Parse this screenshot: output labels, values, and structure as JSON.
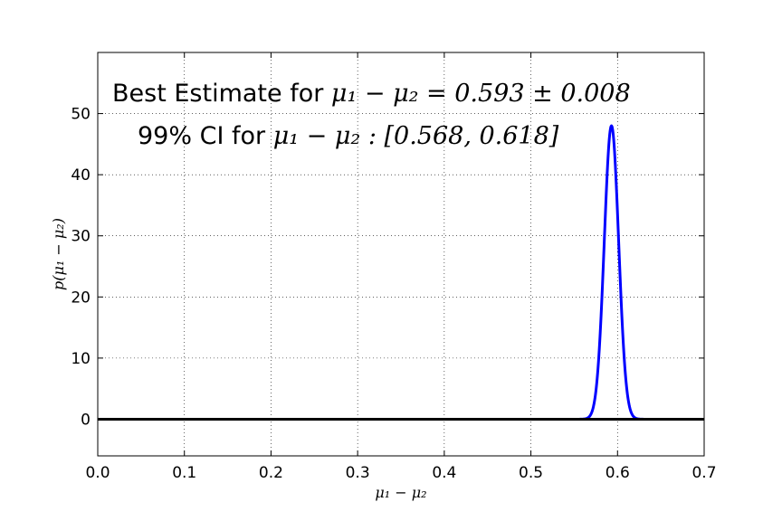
{
  "chart_data": {
    "type": "line",
    "xlabel": "μ₁ − μ₂",
    "ylabel": "p(μ₁ − μ₂)",
    "xlim": [
      0.0,
      0.7
    ],
    "ylim": [
      -6,
      60
    ],
    "x_ticks": [
      "0.0",
      "0.1",
      "0.2",
      "0.3",
      "0.4",
      "0.5",
      "0.6",
      "0.7"
    ],
    "y_ticks": [
      "0",
      "10",
      "20",
      "30",
      "40",
      "50"
    ],
    "grid": true,
    "annotations": {
      "line1_prefix": "Best Estimate for ",
      "line1_math": "μ₁ − μ₂ = 0.593 ± 0.008",
      "line2_prefix": "99% CI for ",
      "line2_math": "μ₁ − μ₂ : [0.568, 0.618]"
    },
    "series": [
      {
        "color": "#0000ff",
        "distribution": "normal",
        "mean": 0.593,
        "std": 0.0083,
        "peak": 48
      },
      {
        "color": "#000000",
        "values": [
          0,
          0
        ],
        "x": [
          0.0,
          0.7
        ]
      }
    ]
  }
}
